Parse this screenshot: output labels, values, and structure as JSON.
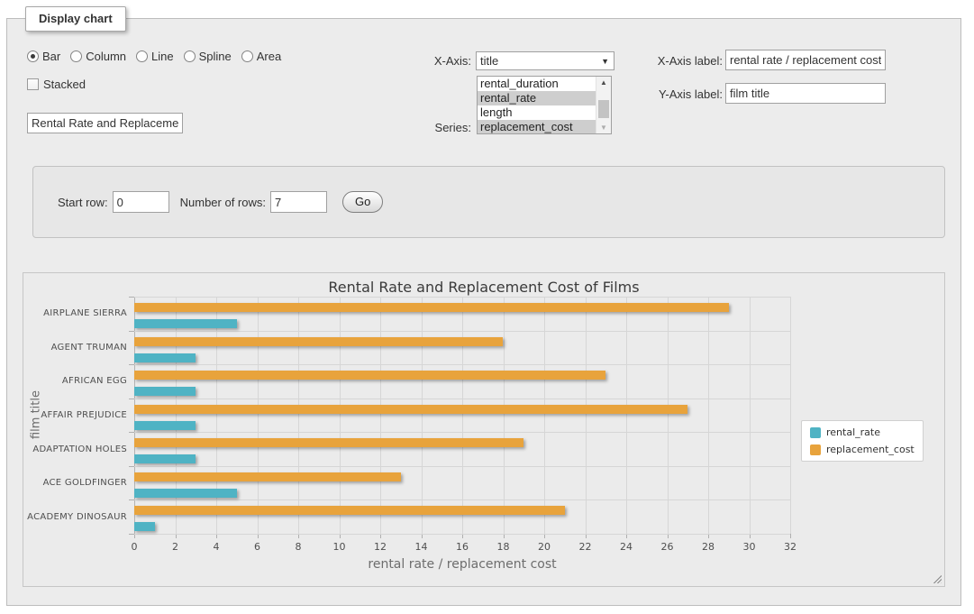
{
  "panel": {
    "legend_title": "Display chart"
  },
  "icons": {
    "dropdown_arrow": "▼",
    "scroll_up": "▲",
    "scroll_down": "▼"
  },
  "controls": {
    "chart_types": [
      {
        "label": "Bar",
        "selected": true
      },
      {
        "label": "Column",
        "selected": false
      },
      {
        "label": "Line",
        "selected": false
      },
      {
        "label": "Spline",
        "selected": false
      },
      {
        "label": "Area",
        "selected": false
      }
    ],
    "stacked": {
      "label": "Stacked",
      "checked": false
    },
    "chart_title_input": {
      "value": "Rental Rate and Replacement Cost of Films"
    },
    "x_axis": {
      "label": "X-Axis:",
      "selected": "title"
    },
    "series": {
      "label": "Series:",
      "options": [
        {
          "label": "rental_duration",
          "selected": false
        },
        {
          "label": "rental_rate",
          "selected": true
        },
        {
          "label": "length",
          "selected": false
        },
        {
          "label": "replacement_cost",
          "selected": true
        }
      ]
    },
    "x_axis_label": {
      "label": "X-Axis label:",
      "value": "rental rate / replacement cost"
    },
    "y_axis_label": {
      "label": "Y-Axis label:",
      "value": "film title"
    }
  },
  "row_controls": {
    "start_row_label": "Start row:",
    "start_row_value": "0",
    "num_rows_label": "Number of rows:",
    "num_rows_value": "7",
    "go_label": "Go"
  },
  "colors": {
    "rental_rate": "#4fb3c4",
    "replacement_cost": "#e8a33c",
    "selected_option_bg": "#cecece"
  },
  "chart_data": {
    "type": "bar",
    "title": "Rental Rate and Replacement Cost of Films",
    "xlabel": "rental rate / replacement cost",
    "ylabel": "film title",
    "categories": [
      "AIRPLANE SIERRA",
      "AGENT TRUMAN",
      "AFRICAN EGG",
      "AFFAIR PREJUDICE",
      "ADAPTATION HOLES",
      "ACE GOLDFINGER",
      "ACADEMY DINOSAUR"
    ],
    "series": [
      {
        "name": "rental_rate",
        "color": "#4fb3c4",
        "values": [
          4.99,
          2.99,
          2.99,
          2.99,
          2.99,
          4.99,
          0.99
        ]
      },
      {
        "name": "replacement_cost",
        "color": "#e8a33c",
        "values": [
          28.99,
          17.99,
          22.99,
          26.99,
          18.99,
          12.99,
          20.99
        ]
      }
    ],
    "bar_draw_order_top_to_bottom": [
      "replacement_cost",
      "rental_rate"
    ],
    "xlim": [
      0,
      32
    ],
    "x_ticks": [
      0,
      2,
      4,
      6,
      8,
      10,
      12,
      14,
      16,
      18,
      20,
      22,
      24,
      26,
      28,
      30,
      32
    ],
    "grid": true,
    "legend_position": "right"
  }
}
